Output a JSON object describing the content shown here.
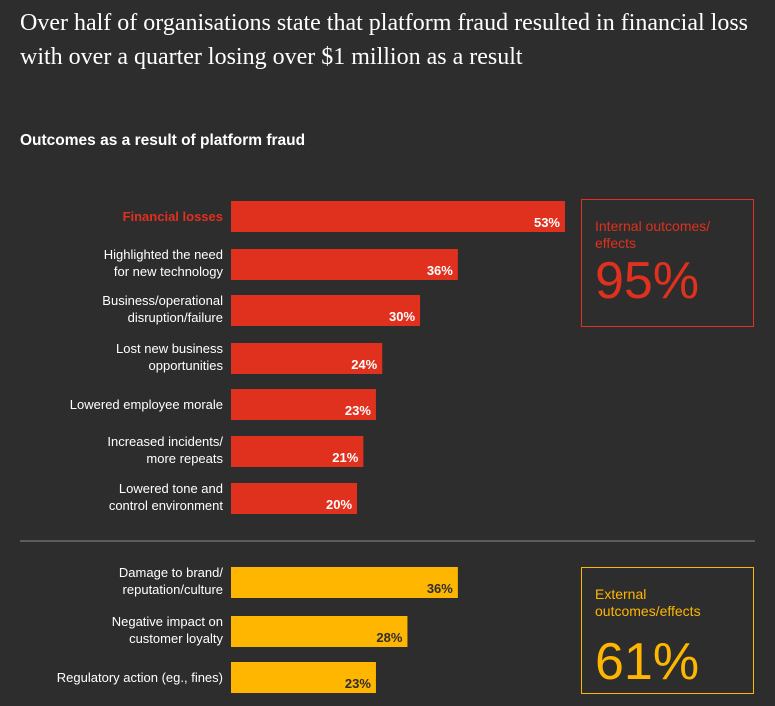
{
  "headline": "Over half of organisations state that platform fraud resulted in financial loss with over a quarter losing over $1 million as a result",
  "colors": {
    "background": "#2d2d2d",
    "internal": "#e0301e",
    "external": "#ffb600",
    "divider": "#8a8a8a"
  },
  "chart_data": {
    "type": "bar",
    "orientation": "horizontal",
    "title": "Outcomes as a result of platform fraud",
    "grid": false,
    "groups": [
      {
        "name": "Internal outcomes/ effects",
        "total_label": "95%",
        "color": "#e0301e",
        "categories": [
          [
            "Financial losses"
          ],
          [
            "Highlighted the need",
            "for new technology"
          ],
          [
            "Business/operational",
            "disruption/failure"
          ],
          [
            "Lost new business",
            "opportunities"
          ],
          [
            "Lowered employee morale"
          ],
          [
            "Increased incidents/",
            "more repeats"
          ],
          [
            "Lowered tone and",
            "control environment"
          ]
        ],
        "values": [
          53,
          36,
          30,
          24,
          23,
          21,
          20
        ],
        "value_labels": [
          "53%",
          "36%",
          "30%",
          "24%",
          "23%",
          "21%",
          "20%"
        ]
      },
      {
        "name": "External outcomes/effects",
        "total_label": "61%",
        "color": "#ffb600",
        "categories": [
          [
            "Damage to brand/",
            "reputation/culture"
          ],
          [
            "Negative impact on",
            "customer loyalty"
          ],
          [
            "Regulatory action (eg., fines)"
          ]
        ],
        "values": [
          36,
          28,
          23
        ],
        "value_labels": [
          "36%",
          "28%",
          "23%"
        ]
      }
    ]
  },
  "callouts": {
    "internal": {
      "label": "Internal outcomes/\neffects",
      "value": "95%"
    },
    "external": {
      "label": "External\noutcomes/effects",
      "value": "61%"
    }
  }
}
